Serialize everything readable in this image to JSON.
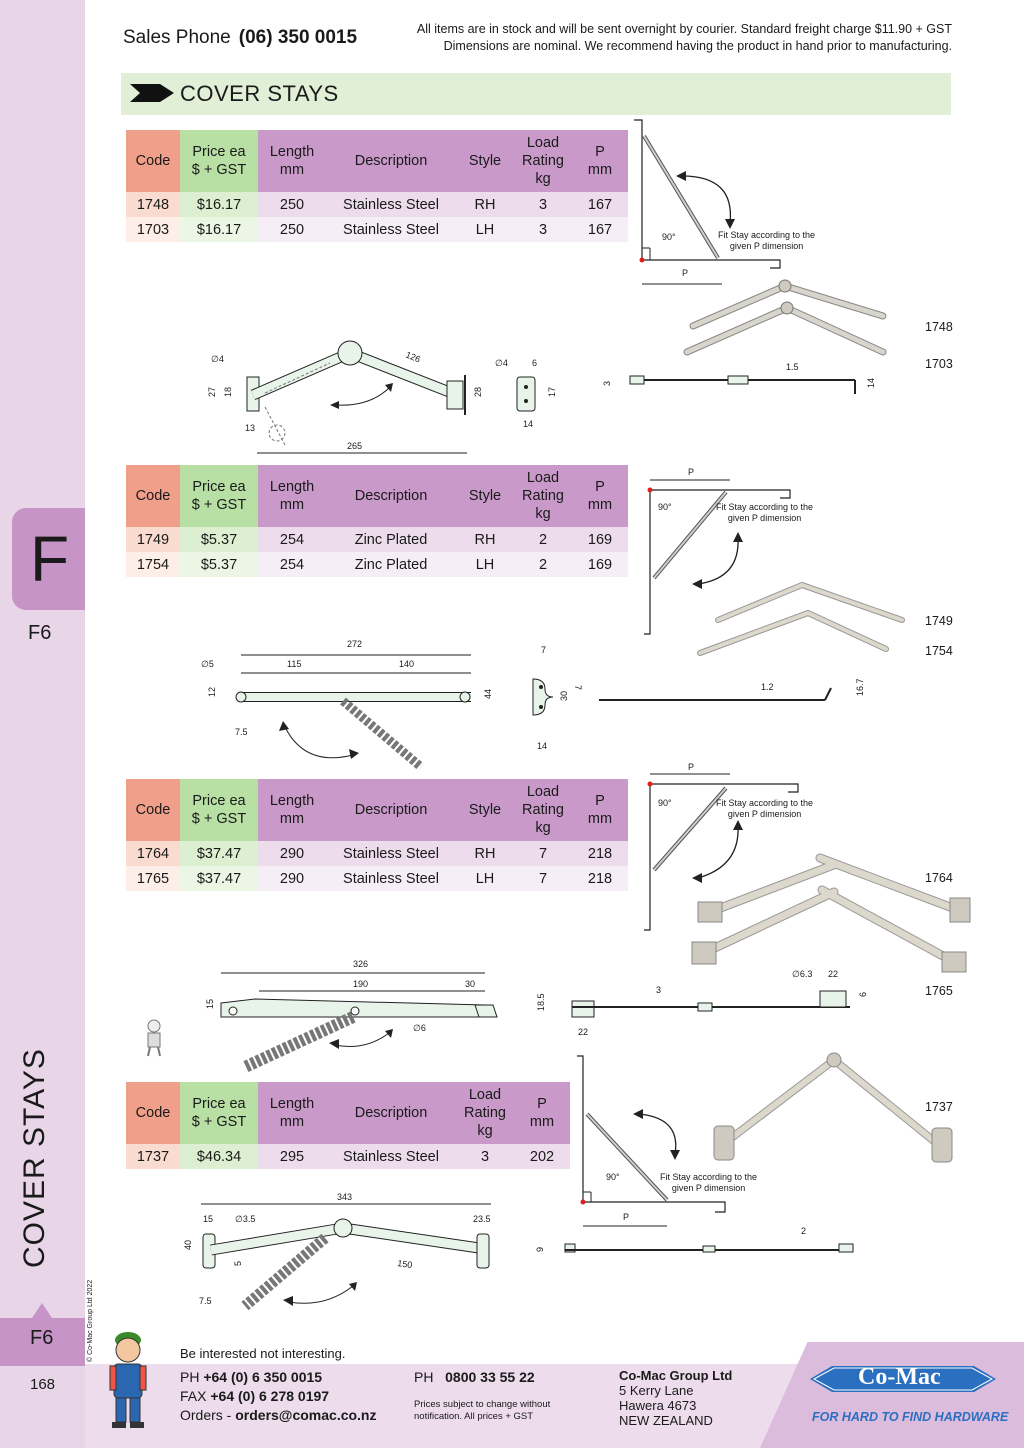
{
  "header": {
    "sales_label": "Sales Phone",
    "sales_phone": "(06) 350 0015",
    "notice_line1": "All items are in stock and will be sent overnight by courier. Standard freight charge $11.90 + GST",
    "notice_line2": "Dimensions are nominal. We recommend having the product in hand prior to manufacturing."
  },
  "section": {
    "title": "COVER STAYS"
  },
  "sidebar": {
    "tab_letter": "F",
    "tab_code": "F6",
    "vertical_title": "COVER STAYS",
    "copyright": "© Co-Mac Group Ltd 2022",
    "bottom_code": "F6",
    "page_number": "168"
  },
  "table_headers": {
    "code": "Code",
    "price_1": "Price ea",
    "price_2": "$ + GST",
    "length_1": "Length",
    "length_2": "mm",
    "description": "Description",
    "style": "Style",
    "load_1": "Load",
    "load_2": "Rating",
    "load_3": "kg",
    "p_1": "P",
    "p_2": "mm"
  },
  "products": [
    {
      "rows": [
        {
          "code": "1748",
          "price": "$16.17",
          "length": "250",
          "description": "Stainless Steel",
          "style": "RH",
          "load": "3",
          "p": "167"
        },
        {
          "code": "1703",
          "price": "$16.17",
          "length": "250",
          "description": "Stainless Steel",
          "style": "LH",
          "load": "3",
          "p": "167"
        }
      ],
      "photo_labels": [
        "1748",
        "1703"
      ],
      "dims": {
        "hole": "∅4",
        "a": "27",
        "b": "18",
        "c": "13",
        "d": "126",
        "e": "265",
        "f": "28",
        "g": "∅4",
        "h": "6",
        "i": "17",
        "j": "14",
        "k": "3",
        "l": "1.5",
        "m": "14"
      }
    },
    {
      "rows": [
        {
          "code": "1749",
          "price": "$5.37",
          "length": "254",
          "description": "Zinc Plated",
          "style": "RH",
          "load": "2",
          "p": "169"
        },
        {
          "code": "1754",
          "price": "$5.37",
          "length": "254",
          "description": "Zinc Plated",
          "style": "LH",
          "load": "2",
          "p": "169"
        }
      ],
      "photo_labels": [
        "1749",
        "1754"
      ],
      "dims": {
        "hole": "∅5",
        "a": "12",
        "b": "7.5",
        "c": "272",
        "d": "115",
        "e": "140",
        "f": "44",
        "g": "7",
        "h": "7",
        "i": "30",
        "j": "14",
        "k": "1.2",
        "l": "16.7"
      }
    },
    {
      "rows": [
        {
          "code": "1764",
          "price": "$37.47",
          "length": "290",
          "description": "Stainless Steel",
          "style": "RH",
          "load": "7",
          "p": "218"
        },
        {
          "code": "1765",
          "price": "$37.47",
          "length": "290",
          "description": "Stainless Steel",
          "style": "LH",
          "load": "7",
          "p": "218"
        }
      ],
      "photo_labels": [
        "1764",
        "1765"
      ],
      "dims": {
        "a": "326",
        "b": "190",
        "c": "30",
        "d": "15",
        "hole": "∅6",
        "e": "18.5",
        "f": "22",
        "g": "3",
        "h": "∅6.3",
        "i": "22",
        "j": "6"
      }
    },
    {
      "rows": [
        {
          "code": "1737",
          "price": "$46.34",
          "length": "295",
          "description": "Stainless Steel",
          "load": "3",
          "p": "202"
        }
      ],
      "photo_labels": [
        "1737"
      ],
      "dims": {
        "a": "343",
        "b": "15",
        "hole": "∅3.5",
        "c": "23.5",
        "d": "40",
        "e": "5",
        "f": "150",
        "g": "7.5",
        "h": "9",
        "i": "2"
      }
    }
  ],
  "diagram_text": {
    "fit_note_1": "Fit Stay according to the",
    "fit_note_2": "given P dimension",
    "angle": "90°",
    "p": "P"
  },
  "footer": {
    "tagline": "Be interested not interesting.",
    "ph_label": "PH",
    "ph": "+64 (0) 6 350 0015",
    "fax_label": "FAX",
    "fax": "+64 (0) 6 278 0197",
    "orders_label": "Orders -",
    "orders": "orders@comac.co.nz",
    "ph2_label": "PH",
    "ph2": "0800 33 55 22",
    "prices_note_1": "Prices subject to change without",
    "prices_note_2": "notification. All prices + GST",
    "company": "Co-Mac Group Ltd",
    "addr1": "5 Kerry Lane",
    "addr2": "Hawera 4673",
    "addr3": "NEW ZEALAND",
    "logo": "Co-Mac",
    "logo_sub": "FOR HARD TO FIND HARDWARE"
  },
  "colors": {
    "sidebar": "#e8d6e8",
    "tab": "#c794c7",
    "section_bar": "#e1efd6",
    "code_header": "#f0a08a",
    "price_header": "#b8dfa4",
    "header": "#c99ac9",
    "logo_blue": "#2a6fc0"
  }
}
